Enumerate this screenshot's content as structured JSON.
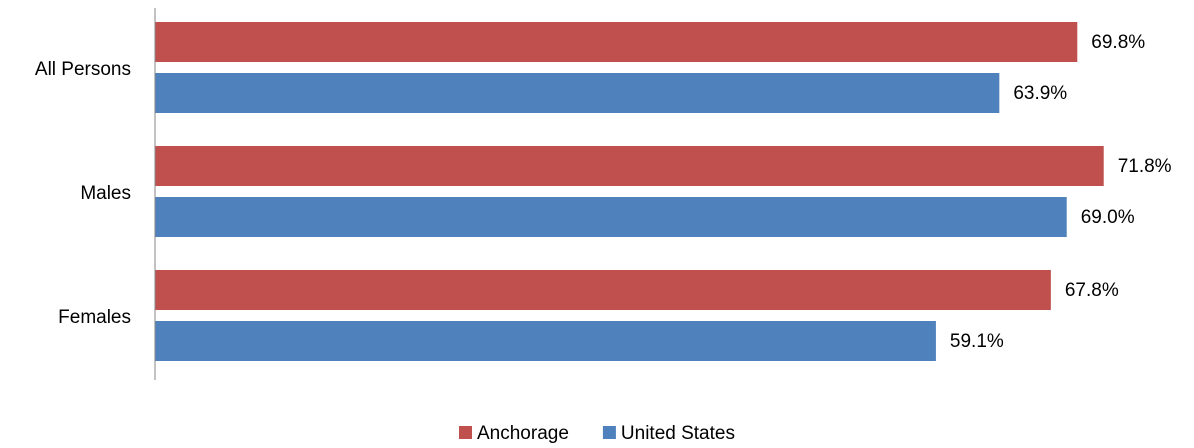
{
  "chart_data": {
    "type": "bar",
    "orientation": "horizontal",
    "categories": [
      "All Persons",
      "Males",
      "Females"
    ],
    "series": [
      {
        "name": "Anchorage",
        "color": "#c0504d",
        "values": [
          69.8,
          71.8,
          67.8
        ],
        "value_labels": [
          "69.8%",
          "71.8%",
          "67.8%"
        ]
      },
      {
        "name": "United States",
        "color": "#4f81bd",
        "values": [
          63.9,
          69.0,
          59.1
        ],
        "value_labels": [
          "63.9%",
          "69.0%",
          "59.1%"
        ]
      }
    ],
    "xlim": [
      0,
      75
    ],
    "legend": "bottom"
  }
}
